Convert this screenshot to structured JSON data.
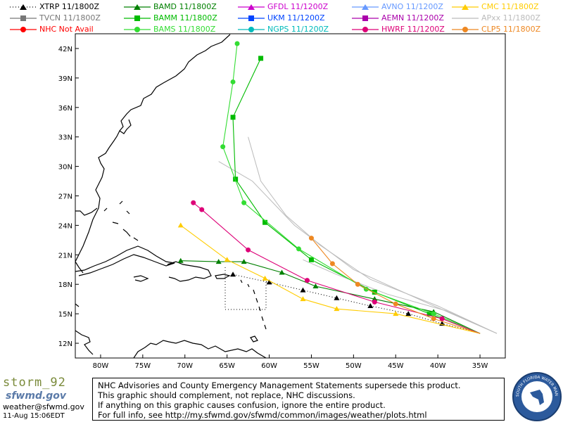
{
  "legend": [
    {
      "label": "XTRP  11/1800Z",
      "color": "#000000",
      "marker": "triangle",
      "dash": "dotted"
    },
    {
      "label": "BAMD 11/1800Z",
      "color": "#008000",
      "marker": "triangle",
      "dash": "solid"
    },
    {
      "label": "GFDL  11/1200Z",
      "color": "#cc00cc",
      "marker": "triangle",
      "dash": "solid"
    },
    {
      "label": "AVNO 11/1200Z",
      "color": "#6699ff",
      "marker": "triangle",
      "dash": "solid"
    },
    {
      "label": "CMC  11/1800Z",
      "color": "#ffcc00",
      "marker": "triangle",
      "dash": "solid"
    },
    {
      "label": "TVCN 11/1800Z",
      "color": "#777777",
      "marker": "square",
      "dash": "solid"
    },
    {
      "label": "BAMM 11/1800Z",
      "color": "#00bb00",
      "marker": "square",
      "dash": "solid"
    },
    {
      "label": "UKM  11/1200Z",
      "color": "#0044ff",
      "marker": "square",
      "dash": "solid"
    },
    {
      "label": "AEMN 11/1200Z",
      "color": "#aa00aa",
      "marker": "square",
      "dash": "solid"
    },
    {
      "label": "APxx 11/1800Z",
      "color": "#bbbbbb",
      "marker": "none",
      "dash": "solid"
    },
    {
      "label": "NHC   Not Avail",
      "color": "#ff0000",
      "marker": "circle",
      "dash": "solid"
    },
    {
      "label": "BAMS 11/1800Z",
      "color": "#33dd33",
      "marker": "circle",
      "dash": "solid"
    },
    {
      "label": "NGPS 11/1200Z",
      "color": "#00bbbb",
      "marker": "circle",
      "dash": "solid"
    },
    {
      "label": "HWRF 11/1200Z",
      "color": "#dd0077",
      "marker": "circle",
      "dash": "solid"
    },
    {
      "label": "CLP5 11/1800Z",
      "color": "#ee8822",
      "marker": "circle",
      "dash": "solid"
    }
  ],
  "axes": {
    "lon_labels": [
      "80W",
      "75W",
      "70W",
      "65W",
      "60W",
      "55W",
      "50W",
      "45W",
      "40W",
      "35W"
    ],
    "lat_labels": [
      "12N",
      "15N",
      "18N",
      "21N",
      "24N",
      "27N",
      "30N",
      "33N",
      "36N",
      "39N",
      "42N"
    ]
  },
  "chart_data": {
    "type": "map",
    "lon_range": [
      -83,
      -32
    ],
    "lat_range": [
      10.5,
      43.5
    ],
    "tracks": [
      {
        "model": "XTRP",
        "points": [
          [
            -35,
            13
          ],
          [
            -39.5,
            14
          ],
          [
            -43.5,
            15
          ],
          [
            -48,
            15.8
          ],
          [
            -52,
            16.6
          ],
          [
            -56,
            17.4
          ],
          [
            -60,
            18.2
          ],
          [
            -64.3,
            19
          ]
        ]
      },
      {
        "model": "BAMD",
        "points": [
          [
            -35,
            13
          ],
          [
            -40.5,
            15.2
          ],
          [
            -47.5,
            16.5
          ],
          [
            -54.5,
            17.8
          ],
          [
            -58.5,
            19.2
          ],
          [
            -63,
            20.3
          ],
          [
            -66,
            20.3
          ],
          [
            -70.5,
            20.4
          ]
        ]
      },
      {
        "model": "BAMM",
        "points": [
          [
            -35,
            13
          ],
          [
            -41,
            15
          ],
          [
            -47.5,
            17.2
          ],
          [
            -55,
            20.5
          ],
          [
            -60.5,
            24.3
          ],
          [
            -64,
            28.7
          ],
          [
            -64.3,
            35
          ],
          [
            -61,
            41
          ]
        ]
      },
      {
        "model": "BAMS",
        "points": [
          [
            -35,
            13
          ],
          [
            -40.5,
            15
          ],
          [
            -48.5,
            17.5
          ],
          [
            -56.5,
            21.6
          ],
          [
            -63,
            26.3
          ],
          [
            -65.5,
            32
          ],
          [
            -64.3,
            38.6
          ],
          [
            -63.8,
            42.5
          ]
        ]
      },
      {
        "model": "HWRF",
        "points": [
          [
            -35,
            13
          ],
          [
            -39.5,
            14.5
          ],
          [
            -47.5,
            16.2
          ],
          [
            -55.5,
            18.4
          ],
          [
            -62.5,
            21.5
          ],
          [
            -68,
            25.6
          ],
          [
            -69,
            26.3
          ]
        ]
      },
      {
        "model": "CMC",
        "points": [
          [
            -35,
            13
          ],
          [
            -45,
            15
          ],
          [
            -52,
            15.5
          ],
          [
            -56,
            16.5
          ],
          [
            -60.5,
            18.6
          ],
          [
            -65,
            20.5
          ],
          [
            -70.5,
            24
          ]
        ]
      },
      {
        "model": "CLP5",
        "points": [
          [
            -35,
            13
          ],
          [
            -40.5,
            14.5
          ],
          [
            -45,
            16
          ],
          [
            -49.5,
            18
          ],
          [
            -52.5,
            20.1
          ],
          [
            -55,
            22.7
          ]
        ]
      }
    ],
    "consensus_lines": [
      {
        "model": "APxx",
        "points": [
          [
            -33,
            13
          ],
          [
            -40,
            15.8
          ],
          [
            -48,
            18.5
          ],
          [
            -54,
            22
          ],
          [
            -58,
            25
          ],
          [
            -61,
            28.5
          ],
          [
            -62.5,
            33
          ]
        ]
      },
      {
        "model": "APxx",
        "points": [
          [
            -33,
            13
          ],
          [
            -41,
            16
          ],
          [
            -50,
            19.5
          ],
          [
            -57,
            24
          ],
          [
            -62,
            28.5
          ],
          [
            -66,
            30.5
          ]
        ]
      },
      {
        "model": "APxx",
        "points": [
          [
            -33,
            13
          ],
          [
            -39,
            15.3
          ],
          [
            -46,
            17
          ],
          [
            -52,
            19
          ],
          [
            -56,
            20.5
          ]
        ]
      }
    ]
  },
  "footer": {
    "storm": "storm_92",
    "logo": "sfwmd.gov",
    "email": "weather@sfwmd.gov",
    "timestamp": "11-Aug 15:06EDT",
    "disclaimer_lines": [
      "NHC Advisories and County Emergency Management Statements supersede this product.",
      "This graphic should complement, not replace, NHC discussions.",
      "If anything on this graphic causes confusion, ignore the entire product.",
      "For full info, see  http://my.sfwmd.gov/sfwmd/common/images/weather/plots.html"
    ],
    "seal_text": "SOUTH FLORIDA WATER MANAGEMENT DISTRICT"
  }
}
